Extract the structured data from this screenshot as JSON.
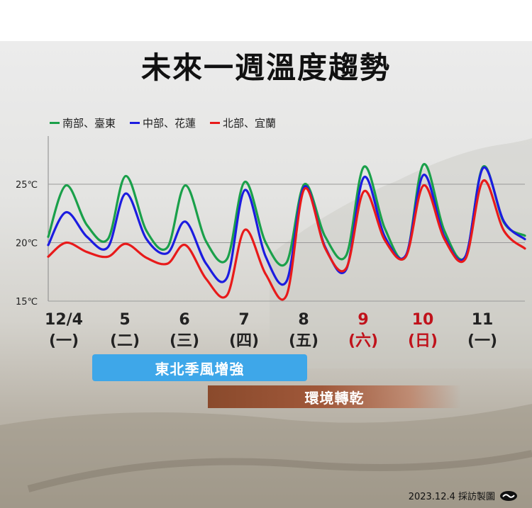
{
  "title": "未來一週溫度趨勢",
  "footer": {
    "credit": "2023.12.4 採訪製圖"
  },
  "bands": [
    {
      "label": "東北季風增強",
      "color": "#3ea7e9"
    },
    {
      "label": "環境轉乾",
      "color": "#8a4a2c"
    }
  ],
  "chart_data": {
    "type": "line",
    "xlim": [
      0,
      8
    ],
    "ylim": [
      15,
      30
    ],
    "y_ticks": [
      {
        "value": 25,
        "label": "25℃"
      },
      {
        "value": 20,
        "label": "20℃"
      },
      {
        "value": 15,
        "label": "15℃"
      }
    ],
    "day_labels": [
      {
        "date": "12/4",
        "weekday": "(一)",
        "color": "#222222"
      },
      {
        "date": "5",
        "weekday": "(二)",
        "color": "#222222"
      },
      {
        "date": "6",
        "weekday": "(三)",
        "color": "#222222"
      },
      {
        "date": "7",
        "weekday": "(四)",
        "color": "#222222"
      },
      {
        "date": "8",
        "weekday": "(五)",
        "color": "#222222"
      },
      {
        "date": "9",
        "weekday": "(六)",
        "color": "#c0121b"
      },
      {
        "date": "10",
        "weekday": "(日)",
        "color": "#c0121b"
      },
      {
        "date": "11",
        "weekday": "(一)",
        "color": "#222222"
      }
    ],
    "grid": true,
    "series": [
      {
        "name": "南部、臺東",
        "color": "#1aa04a",
        "points": [
          [
            0,
            20.5
          ],
          [
            0.3,
            24.9
          ],
          [
            0.65,
            21.5
          ],
          [
            1,
            20.3
          ],
          [
            1.3,
            25.7
          ],
          [
            1.65,
            21.0
          ],
          [
            2,
            19.6
          ],
          [
            2.3,
            24.9
          ],
          [
            2.65,
            20.1
          ],
          [
            3,
            18.6
          ],
          [
            3.3,
            25.2
          ],
          [
            3.65,
            20.0
          ],
          [
            4,
            18.3
          ],
          [
            4.3,
            25.0
          ],
          [
            4.65,
            20.5
          ],
          [
            5,
            18.9
          ],
          [
            5.3,
            26.5
          ],
          [
            5.65,
            21.2
          ],
          [
            6,
            18.8
          ],
          [
            6.3,
            26.7
          ],
          [
            6.65,
            21.0
          ],
          [
            7,
            18.8
          ],
          [
            7.3,
            26.5
          ],
          [
            7.65,
            21.7
          ],
          [
            8,
            20.6
          ]
        ]
      },
      {
        "name": "中部、花蓮",
        "color": "#1c1ce0",
        "points": [
          [
            0,
            19.8
          ],
          [
            0.3,
            22.6
          ],
          [
            0.65,
            20.5
          ],
          [
            1,
            19.6
          ],
          [
            1.3,
            24.2
          ],
          [
            1.65,
            20.3
          ],
          [
            2,
            19.1
          ],
          [
            2.3,
            21.8
          ],
          [
            2.65,
            18.2
          ],
          [
            3,
            17.0
          ],
          [
            3.3,
            24.5
          ],
          [
            3.65,
            18.8
          ],
          [
            4,
            16.7
          ],
          [
            4.3,
            24.8
          ],
          [
            4.65,
            19.6
          ],
          [
            5,
            17.7
          ],
          [
            5.3,
            25.6
          ],
          [
            5.65,
            20.5
          ],
          [
            6,
            18.9
          ],
          [
            6.3,
            25.8
          ],
          [
            6.65,
            20.5
          ],
          [
            7,
            18.8
          ],
          [
            7.3,
            26.4
          ],
          [
            7.65,
            21.8
          ],
          [
            8,
            20.3
          ]
        ]
      },
      {
        "name": "北部、宜蘭",
        "color": "#e81a1a",
        "points": [
          [
            0,
            18.8
          ],
          [
            0.3,
            20.0
          ],
          [
            0.65,
            19.2
          ],
          [
            1,
            18.8
          ],
          [
            1.3,
            19.9
          ],
          [
            1.65,
            18.7
          ],
          [
            2,
            18.2
          ],
          [
            2.3,
            19.8
          ],
          [
            2.65,
            16.9
          ],
          [
            3,
            15.5
          ],
          [
            3.3,
            21.1
          ],
          [
            3.65,
            17.3
          ],
          [
            4,
            15.5
          ],
          [
            4.3,
            24.6
          ],
          [
            4.65,
            19.5
          ],
          [
            5,
            17.8
          ],
          [
            5.3,
            24.4
          ],
          [
            5.65,
            20.2
          ],
          [
            6,
            18.8
          ],
          [
            6.3,
            24.9
          ],
          [
            6.65,
            20.3
          ],
          [
            7,
            18.6
          ],
          [
            7.3,
            25.3
          ],
          [
            7.65,
            21.0
          ],
          [
            8,
            19.5
          ]
        ]
      }
    ]
  }
}
